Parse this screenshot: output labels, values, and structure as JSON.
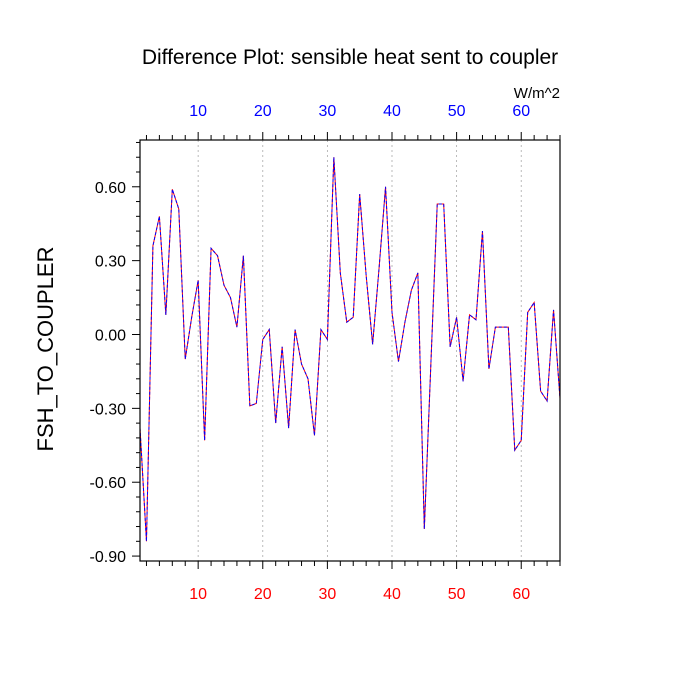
{
  "chart_data": {
    "type": "line",
    "title": "Difference Plot: sensible heat sent to coupler",
    "ylabel": "FSH_TO_COUPLER",
    "xlabel": "",
    "top_axis_units": "W/m^2",
    "xlim": [
      1,
      66
    ],
    "ylim": [
      -0.92,
      0.79
    ],
    "x_ticks": [
      10,
      20,
      30,
      40,
      50,
      60
    ],
    "x_tick_labels": [
      "10",
      "20",
      "30",
      "40",
      "50",
      "60"
    ],
    "y_ticks": [
      0.6,
      0.3,
      0.0,
      -0.3,
      -0.6,
      -0.9
    ],
    "y_tick_labels": [
      "0.60",
      "0.30",
      "0.00",
      "-0.30",
      "-0.60",
      "-0.90"
    ],
    "grid": "vertical dotted at major x ticks",
    "colors": {
      "series_a": "#0000ff",
      "series_b": "#ff0000",
      "bottom_tick_labels": "#ff0000",
      "top_tick_labels": "#0000ff"
    },
    "x": [
      1,
      2,
      3,
      4,
      5,
      6,
      7,
      8,
      9,
      10,
      11,
      12,
      13,
      14,
      15,
      16,
      17,
      18,
      19,
      20,
      21,
      22,
      23,
      24,
      25,
      26,
      27,
      28,
      29,
      30,
      31,
      32,
      33,
      34,
      35,
      36,
      37,
      38,
      39,
      40,
      41,
      42,
      43,
      44,
      45,
      46,
      47,
      48,
      49,
      50,
      51,
      52,
      53,
      54,
      55,
      56,
      57,
      58,
      59,
      60,
      61,
      62,
      63,
      64,
      65,
      66
    ],
    "series": [
      {
        "values": [
          -0.38,
          -0.84,
          0.36,
          0.48,
          0.08,
          0.59,
          0.51,
          -0.1,
          0.07,
          0.22,
          -0.43,
          0.35,
          0.32,
          0.2,
          0.15,
          0.03,
          0.32,
          -0.29,
          -0.28,
          -0.02,
          0.02,
          -0.36,
          -0.05,
          -0.38,
          0.02,
          -0.12,
          -0.18,
          -0.41,
          0.02,
          -0.02,
          0.72,
          0.25,
          0.05,
          0.07,
          0.57,
          0.24,
          -0.04,
          0.27,
          0.6,
          0.09,
          -0.11,
          0.05,
          0.18,
          0.25,
          -0.79,
          -0.13,
          0.53,
          0.53,
          -0.05,
          0.07,
          -0.19,
          0.08,
          0.06,
          0.42,
          -0.14,
          0.03,
          0.03,
          0.03,
          -0.47,
          -0.43,
          0.09,
          0.13,
          -0.23,
          -0.27,
          0.1,
          -0.26
        ]
      },
      {
        "values": [
          -0.38,
          -0.84,
          0.36,
          0.48,
          0.08,
          0.59,
          0.51,
          -0.1,
          0.07,
          0.22,
          -0.43,
          0.35,
          0.32,
          0.2,
          0.15,
          0.03,
          0.32,
          -0.29,
          -0.28,
          -0.02,
          0.02,
          -0.36,
          -0.05,
          -0.38,
          0.02,
          -0.12,
          -0.18,
          -0.41,
          0.02,
          -0.02,
          0.72,
          0.25,
          0.05,
          0.07,
          0.57,
          0.24,
          -0.04,
          0.27,
          0.6,
          0.09,
          -0.11,
          0.05,
          0.18,
          0.25,
          -0.79,
          -0.13,
          0.53,
          0.53,
          -0.05,
          0.07,
          -0.19,
          0.08,
          0.06,
          0.42,
          -0.14,
          0.03,
          0.03,
          0.03,
          -0.47,
          -0.43,
          0.09,
          0.13,
          -0.23,
          -0.27,
          0.1,
          -0.26
        ]
      }
    ]
  }
}
